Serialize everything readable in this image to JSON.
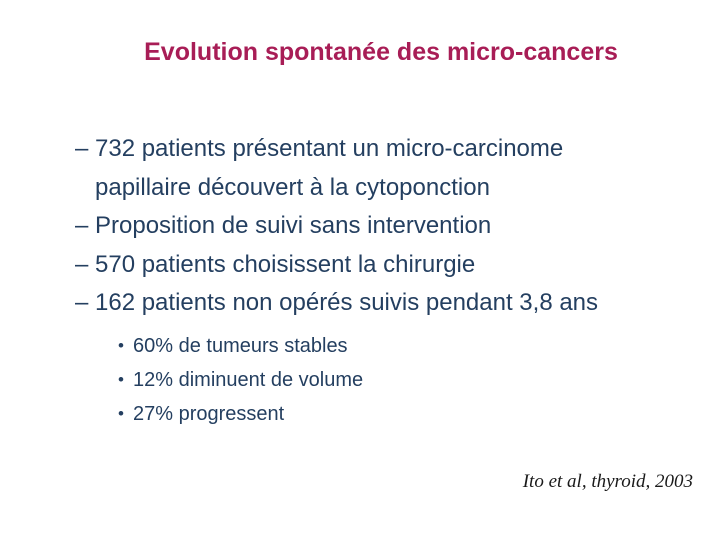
{
  "slide": {
    "title": "Evolution spontanée des micro-cancers",
    "markers": {
      "dash": "–",
      "dot": "•"
    },
    "bullets": [
      "732 patients présentant un micro-carcinome papillaire découvert à la cytoponction",
      "Proposition de suivi sans intervention",
      "570 patients choisissent la chirurgie",
      "162 patients non opérés suivis pendant 3,8 ans"
    ],
    "sub_bullets": [
      "60% de tumeurs stables",
      "12% diminuent de volume",
      "27% progressent"
    ],
    "citation": "Ito et al, thyroid, 2003",
    "colors": {
      "title": "#a81d56",
      "body": "#243f60",
      "citation": "#1a1a1a",
      "background": "#ffffff"
    }
  }
}
